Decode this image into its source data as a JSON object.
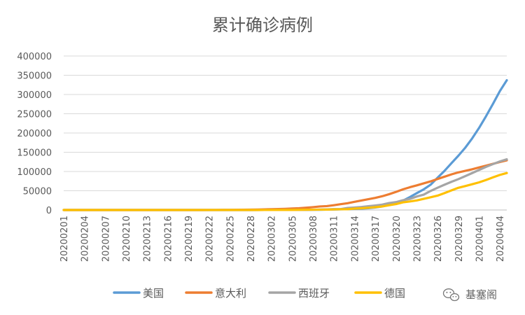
{
  "chart_data": {
    "type": "line",
    "title": "累计确诊病例",
    "xlabel": "",
    "ylabel": "",
    "ylim": [
      0,
      400000
    ],
    "y_ticks": [
      0,
      50000,
      100000,
      150000,
      200000,
      250000,
      300000,
      350000,
      400000
    ],
    "grid": true,
    "legend_position": "bottom",
    "x": [
      "20200201",
      "20200202",
      "20200203",
      "20200204",
      "20200205",
      "20200206",
      "20200207",
      "20200208",
      "20200209",
      "20200210",
      "20200211",
      "20200212",
      "20200213",
      "20200214",
      "20200215",
      "20200216",
      "20200217",
      "20200218",
      "20200219",
      "20200220",
      "20200221",
      "20200222",
      "20200223",
      "20200224",
      "20200225",
      "20200226",
      "20200227",
      "20200228",
      "20200229",
      "20200301",
      "20200302",
      "20200303",
      "20200304",
      "20200305",
      "20200306",
      "20200307",
      "20200308",
      "20200309",
      "20200310",
      "20200311",
      "20200312",
      "20200313",
      "20200314",
      "20200315",
      "20200316",
      "20200317",
      "20200318",
      "20200319",
      "20200320",
      "20200321",
      "20200322",
      "20200323",
      "20200324",
      "20200325",
      "20200326",
      "20200327",
      "20200328",
      "20200329",
      "20200330",
      "20200331",
      "20200401",
      "20200402",
      "20200403",
      "20200404",
      "20200405"
    ],
    "x_tick_labels": [
      "20200201",
      "20200204",
      "20200207",
      "20200210",
      "20200213",
      "20200216",
      "20200219",
      "20200222",
      "20200225",
      "20200228",
      "20200302",
      "20200305",
      "20200308",
      "20200311",
      "20200314",
      "20200317",
      "20200320",
      "20200323",
      "20200326",
      "20200329",
      "20200401",
      "20200404"
    ],
    "series": [
      {
        "name": "美国",
        "color": "#5B9BD5",
        "values": [
          8,
          11,
          11,
          11,
          12,
          12,
          12,
          12,
          12,
          12,
          13,
          13,
          15,
          15,
          15,
          15,
          15,
          15,
          15,
          15,
          15,
          35,
          35,
          53,
          53,
          59,
          60,
          62,
          70,
          76,
          101,
          122,
          153,
          221,
          319,
          435,
          541,
          704,
          994,
          1301,
          1697,
          2247,
          2943,
          3680,
          4663,
          6411,
          9259,
          13789,
          19383,
          24207,
          33546,
          43734,
          53660,
          65778,
          83836,
          101657,
          121478,
          140886,
          161807,
          186101,
          213372,
          243616,
          275586,
          308850,
          337072
        ]
      },
      {
        "name": "意大利",
        "color": "#ED7D31",
        "values": [
          2,
          2,
          2,
          2,
          2,
          2,
          3,
          3,
          3,
          3,
          3,
          3,
          3,
          3,
          3,
          3,
          3,
          3,
          3,
          3,
          20,
          79,
          150,
          227,
          320,
          445,
          650,
          888,
          1128,
          1694,
          2036,
          2502,
          3089,
          3858,
          4636,
          5883,
          7375,
          9172,
          10149,
          12462,
          15113,
          17660,
          21157,
          24747,
          27980,
          31506,
          35713,
          41035,
          47021,
          53578,
          59138,
          63927,
          69176,
          74386,
          80589,
          86498,
          92472,
          97689,
          101739,
          105792,
          110574,
          115242,
          119827,
          124632,
          128948
        ]
      },
      {
        "name": "西班牙",
        "color": "#A5A5A5",
        "values": [
          1,
          1,
          1,
          1,
          1,
          1,
          1,
          1,
          2,
          2,
          2,
          2,
          2,
          2,
          2,
          2,
          2,
          2,
          2,
          2,
          2,
          2,
          2,
          2,
          3,
          12,
          23,
          32,
          45,
          84,
          120,
          165,
          222,
          259,
          400,
          500,
          673,
          1073,
          1695,
          2277,
          2277,
          5232,
          6391,
          7798,
          9942,
          11748,
          13910,
          17963,
          20410,
          25374,
          28768,
          35136,
          39885,
          49515,
          57786,
          65719,
          73235,
          80110,
          87956,
          95923,
          104118,
          112065,
          119199,
          126168,
          131646
        ]
      },
      {
        "name": "德国",
        "color": "#FFC000",
        "values": [
          8,
          10,
          12,
          12,
          12,
          12,
          13,
          13,
          14,
          14,
          16,
          16,
          16,
          16,
          16,
          16,
          16,
          16,
          16,
          16,
          16,
          16,
          16,
          16,
          16,
          18,
          27,
          46,
          48,
          79,
          130,
          159,
          196,
          262,
          482,
          670,
          799,
          1040,
          1176,
          1457,
          1908,
          2078,
          3675,
          4585,
          5795,
          7272,
          9257,
          12327,
          15320,
          19848,
          22213,
          24873,
          29056,
          32986,
          37323,
          43938,
          50871,
          57695,
          62095,
          66885,
          71808,
          77872,
          84794,
          91159,
          96092
        ]
      }
    ]
  },
  "watermark": {
    "text": "基塞阁",
    "icon": "wechat-icon"
  }
}
